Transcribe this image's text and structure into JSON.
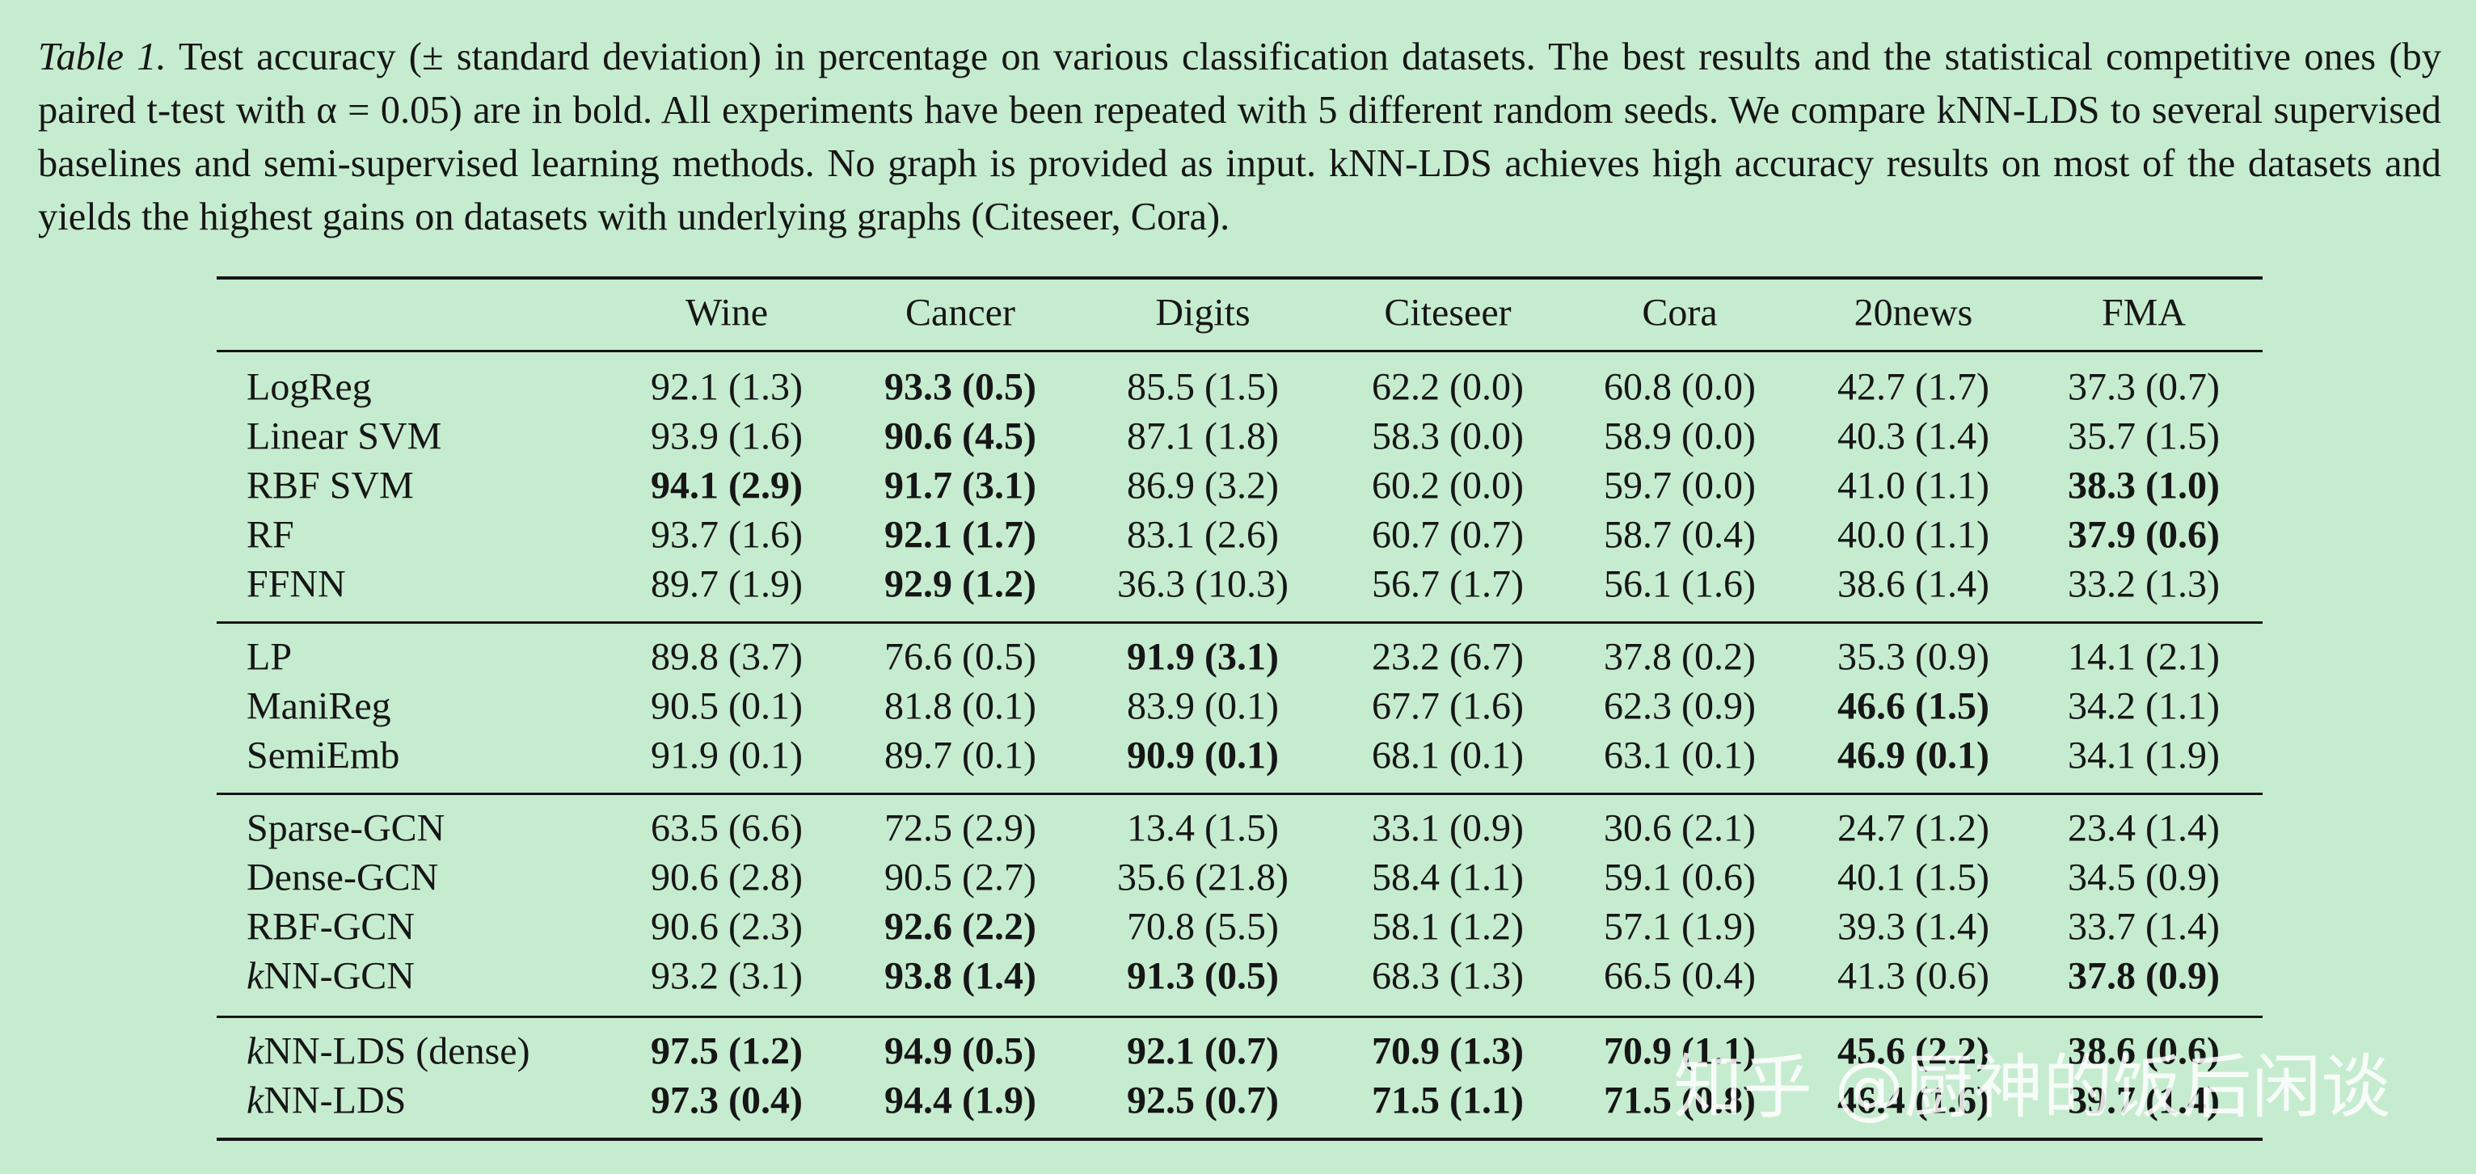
{
  "caption": {
    "label": "Table 1.",
    "text": "Test accuracy (± standard deviation) in percentage on various classification datasets. The best results and the statistical competitive ones (by paired t-test with α = 0.05) are in bold. All experiments have been repeated with 5 different random seeds. We compare kNN-LDS to several supervised baselines and semi-supervised learning methods. No graph is provided as input. kNN-LDS achieves high accuracy results on most of the datasets and yields the highest gains on datasets with underlying graphs (Citeseer, Cora)."
  },
  "table": {
    "columns": [
      "Wine",
      "Cancer",
      "Digits",
      "Citeseer",
      "Cora",
      "20news",
      "FMA"
    ],
    "groups": [
      {
        "rows": [
          {
            "method": "LogReg",
            "cells": [
              "92.1 (1.3)",
              "93.3 (0.5)",
              "85.5 (1.5)",
              "62.2 (0.0)",
              "60.8 (0.0)",
              "42.7 (1.7)",
              "37.3 (0.7)"
            ],
            "bold": [
              false,
              true,
              false,
              false,
              false,
              false,
              false
            ]
          },
          {
            "method": "Linear SVM",
            "cells": [
              "93.9 (1.6)",
              "90.6 (4.5)",
              "87.1 (1.8)",
              "58.3 (0.0)",
              "58.9 (0.0)",
              "40.3 (1.4)",
              "35.7 (1.5)"
            ],
            "bold": [
              false,
              true,
              false,
              false,
              false,
              false,
              false
            ]
          },
          {
            "method": "RBF SVM",
            "cells": [
              "94.1 (2.9)",
              "91.7 (3.1)",
              "86.9 (3.2)",
              "60.2 (0.0)",
              "59.7 (0.0)",
              "41.0 (1.1)",
              "38.3 (1.0)"
            ],
            "bold": [
              true,
              true,
              false,
              false,
              false,
              false,
              true
            ]
          },
          {
            "method": "RF",
            "cells": [
              "93.7 (1.6)",
              "92.1 (1.7)",
              "83.1 (2.6)",
              "60.7 (0.7)",
              "58.7 (0.4)",
              "40.0 (1.1)",
              "37.9 (0.6)"
            ],
            "bold": [
              false,
              true,
              false,
              false,
              false,
              false,
              true
            ]
          },
          {
            "method": "FFNN",
            "cells": [
              "89.7 (1.9)",
              "92.9 (1.2)",
              "36.3 (10.3)",
              "56.7 (1.7)",
              "56.1 (1.6)",
              "38.6 (1.4)",
              "33.2 (1.3)"
            ],
            "bold": [
              false,
              true,
              false,
              false,
              false,
              false,
              false
            ]
          }
        ]
      },
      {
        "rows": [
          {
            "method": "LP",
            "cells": [
              "89.8 (3.7)",
              "76.6 (0.5)",
              "91.9 (3.1)",
              "23.2 (6.7)",
              "37.8 (0.2)",
              "35.3 (0.9)",
              "14.1 (2.1)"
            ],
            "bold": [
              false,
              false,
              true,
              false,
              false,
              false,
              false
            ]
          },
          {
            "method": "ManiReg",
            "cells": [
              "90.5 (0.1)",
              "81.8 (0.1)",
              "83.9 (0.1)",
              "67.7 (1.6)",
              "62.3 (0.9)",
              "46.6 (1.5)",
              "34.2 (1.1)"
            ],
            "bold": [
              false,
              false,
              false,
              false,
              false,
              true,
              false
            ]
          },
          {
            "method": "SemiEmb",
            "cells": [
              "91.9 (0.1)",
              "89.7 (0.1)",
              "90.9 (0.1)",
              "68.1 (0.1)",
              "63.1 (0.1)",
              "46.9 (0.1)",
              "34.1 (1.9)"
            ],
            "bold": [
              false,
              false,
              true,
              false,
              false,
              true,
              false
            ]
          }
        ]
      },
      {
        "rows": [
          {
            "method": "Sparse-GCN",
            "cells": [
              "63.5 (6.6)",
              "72.5 (2.9)",
              "13.4 (1.5)",
              "33.1 (0.9)",
              "30.6 (2.1)",
              "24.7 (1.2)",
              "23.4 (1.4)"
            ],
            "bold": [
              false,
              false,
              false,
              false,
              false,
              false,
              false
            ]
          },
          {
            "method": "Dense-GCN",
            "cells": [
              "90.6 (2.8)",
              "90.5 (2.7)",
              "35.6 (21.8)",
              "58.4 (1.1)",
              "59.1 (0.6)",
              "40.1 (1.5)",
              "34.5 (0.9)"
            ],
            "bold": [
              false,
              false,
              false,
              false,
              false,
              false,
              false
            ]
          },
          {
            "method": "RBF-GCN",
            "cells": [
              "90.6 (2.3)",
              "92.6 (2.2)",
              "70.8 (5.5)",
              "58.1 (1.2)",
              "57.1 (1.9)",
              "39.3 (1.4)",
              "33.7 (1.4)"
            ],
            "bold": [
              false,
              true,
              false,
              false,
              false,
              false,
              false
            ]
          },
          {
            "method": "kNN-GCN",
            "cells": [
              "93.2 (3.1)",
              "93.8 (1.4)",
              "91.3 (0.5)",
              "68.3 (1.3)",
              "66.5 (0.4)",
              "41.3 (0.6)",
              "37.8 (0.9)"
            ],
            "bold": [
              false,
              true,
              true,
              false,
              false,
              false,
              true
            ]
          }
        ]
      },
      {
        "rows": [
          {
            "method": "kNN-LDS (dense)",
            "cells": [
              "97.5 (1.2)",
              "94.9 (0.5)",
              "92.1 (0.7)",
              "70.9 (1.3)",
              "70.9 (1.1)",
              "45.6 (2.2)",
              "38.6 (0.6)"
            ],
            "bold": [
              true,
              true,
              true,
              true,
              true,
              true,
              true
            ]
          },
          {
            "method": "kNN-LDS",
            "cells": [
              "97.3 (0.4)",
              "94.4 (1.9)",
              "92.5 (0.7)",
              "71.5 (1.1)",
              "71.5 (0.8)",
              "46.4 (1.6)",
              "39.7 (1.4)"
            ],
            "bold": [
              true,
              true,
              true,
              true,
              true,
              true,
              true
            ]
          }
        ]
      }
    ]
  },
  "watermark": "知乎 @厨神的饭后闲谈"
}
